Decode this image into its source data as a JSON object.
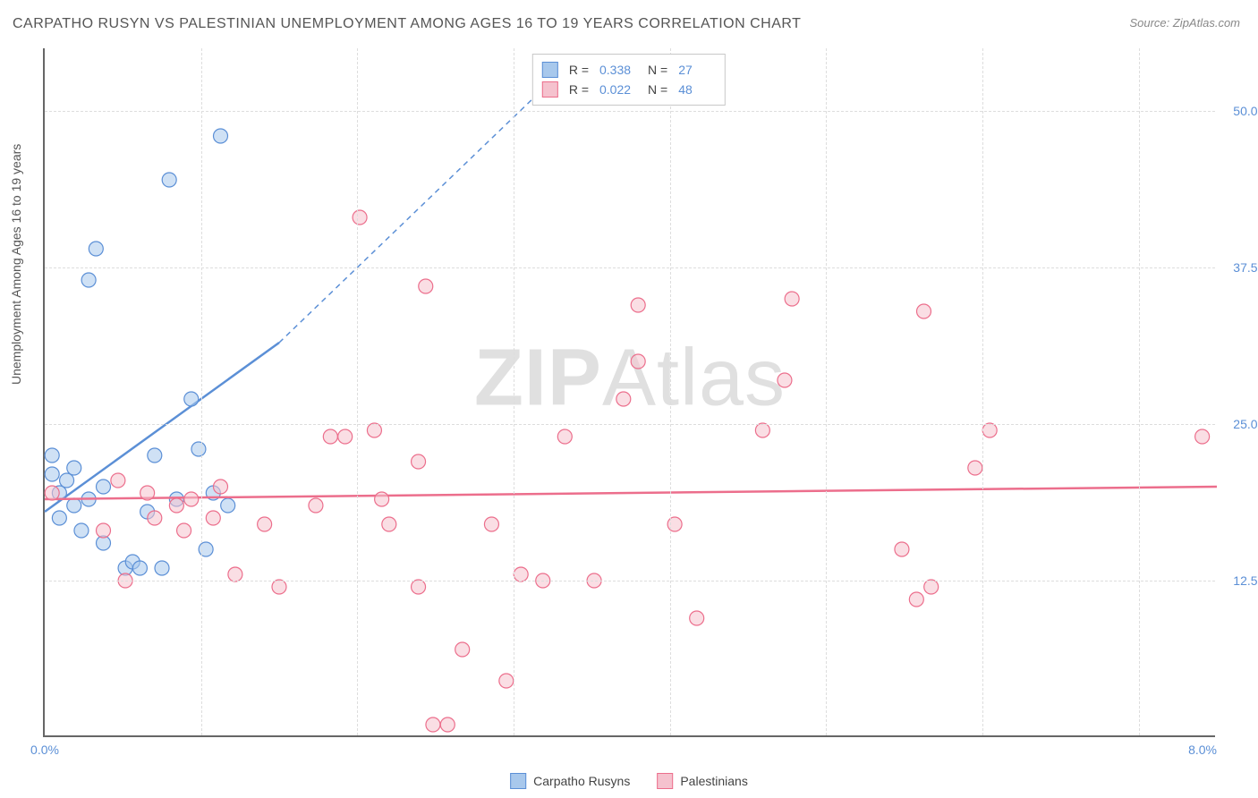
{
  "title": "CARPATHO RUSYN VS PALESTINIAN UNEMPLOYMENT AMONG AGES 16 TO 19 YEARS CORRELATION CHART",
  "source": "Source: ZipAtlas.com",
  "yaxis_title": "Unemployment Among Ages 16 to 19 years",
  "watermark_bold": "ZIP",
  "watermark_light": "Atlas",
  "chart": {
    "type": "scatter",
    "xlim": [
      0,
      8
    ],
    "ylim": [
      0,
      55
    ],
    "xtick_labels": [
      "0.0%",
      "8.0%"
    ],
    "ytick_values": [
      12.5,
      25,
      37.5,
      50
    ],
    "ytick_labels": [
      "12.5%",
      "25.0%",
      "37.5%",
      "50.0%"
    ],
    "xgrid_values": [
      1.07,
      2.13,
      3.2,
      4.27,
      5.33,
      6.4,
      7.47
    ],
    "background_color": "#ffffff",
    "grid_color": "#dddddd",
    "axis_color": "#666666",
    "marker_radius": 8,
    "series": [
      {
        "name": "Carpatho Rusyns",
        "color_fill": "#a8c8ec",
        "color_stroke": "#5b8fd6",
        "r_value": "0.338",
        "n_value": "27",
        "trend": {
          "x1": 0,
          "y1": 18,
          "x2": 1.6,
          "y2": 31.5,
          "dash_to_x": 3.6,
          "dash_to_y": 54
        },
        "points": [
          [
            0.05,
            22.5
          ],
          [
            0.05,
            21
          ],
          [
            0.1,
            19.5
          ],
          [
            0.1,
            17.5
          ],
          [
            0.15,
            20.5
          ],
          [
            0.2,
            21.5
          ],
          [
            0.2,
            18.5
          ],
          [
            0.25,
            16.5
          ],
          [
            0.3,
            36.5
          ],
          [
            0.3,
            19
          ],
          [
            0.35,
            39
          ],
          [
            0.4,
            20
          ],
          [
            0.4,
            15.5
          ],
          [
            0.55,
            13.5
          ],
          [
            0.6,
            14
          ],
          [
            0.65,
            13.5
          ],
          [
            0.7,
            18
          ],
          [
            0.75,
            22.5
          ],
          [
            0.8,
            13.5
          ],
          [
            0.85,
            44.5
          ],
          [
            0.9,
            19
          ],
          [
            1.0,
            27
          ],
          [
            1.05,
            23
          ],
          [
            1.1,
            15
          ],
          [
            1.15,
            19.5
          ],
          [
            1.2,
            48
          ],
          [
            1.25,
            18.5
          ]
        ]
      },
      {
        "name": "Palestinians",
        "color_fill": "#f5c2ce",
        "color_stroke": "#ec6e8c",
        "r_value": "0.022",
        "n_value": "48",
        "trend": {
          "x1": 0,
          "y1": 19,
          "x2": 8,
          "y2": 20
        },
        "points": [
          [
            0.05,
            19.5
          ],
          [
            0.4,
            16.5
          ],
          [
            0.5,
            20.5
          ],
          [
            0.55,
            12.5
          ],
          [
            0.7,
            19.5
          ],
          [
            0.75,
            17.5
          ],
          [
            0.9,
            18.5
          ],
          [
            0.95,
            16.5
          ],
          [
            1.0,
            19
          ],
          [
            1.15,
            17.5
          ],
          [
            1.2,
            20
          ],
          [
            1.3,
            13
          ],
          [
            1.5,
            17
          ],
          [
            1.6,
            12
          ],
          [
            1.85,
            18.5
          ],
          [
            1.95,
            24
          ],
          [
            2.05,
            24
          ],
          [
            2.15,
            41.5
          ],
          [
            2.25,
            24.5
          ],
          [
            2.3,
            19
          ],
          [
            2.35,
            17
          ],
          [
            2.55,
            22
          ],
          [
            2.55,
            12
          ],
          [
            2.6,
            36
          ],
          [
            2.65,
            1
          ],
          [
            2.75,
            1
          ],
          [
            2.85,
            7
          ],
          [
            3.05,
            17
          ],
          [
            3.15,
            4.5
          ],
          [
            3.25,
            13
          ],
          [
            3.4,
            12.5
          ],
          [
            3.55,
            24
          ],
          [
            3.75,
            12.5
          ],
          [
            3.95,
            27
          ],
          [
            4.05,
            30
          ],
          [
            4.05,
            34.5
          ],
          [
            4.3,
            17
          ],
          [
            4.45,
            9.5
          ],
          [
            4.9,
            24.5
          ],
          [
            5.05,
            28.5
          ],
          [
            5.1,
            35
          ],
          [
            5.85,
            15
          ],
          [
            5.95,
            11
          ],
          [
            6.0,
            34
          ],
          [
            6.05,
            12
          ],
          [
            6.35,
            21.5
          ],
          [
            6.45,
            24.5
          ],
          [
            7.9,
            24
          ]
        ]
      }
    ]
  },
  "legend_bottom": [
    {
      "label": "Carpatho Rusyns",
      "fill": "#a8c8ec",
      "stroke": "#5b8fd6"
    },
    {
      "label": "Palestinians",
      "fill": "#f5c2ce",
      "stroke": "#ec6e8c"
    }
  ],
  "legend_top_labels": {
    "r": "R =",
    "n": "N ="
  }
}
